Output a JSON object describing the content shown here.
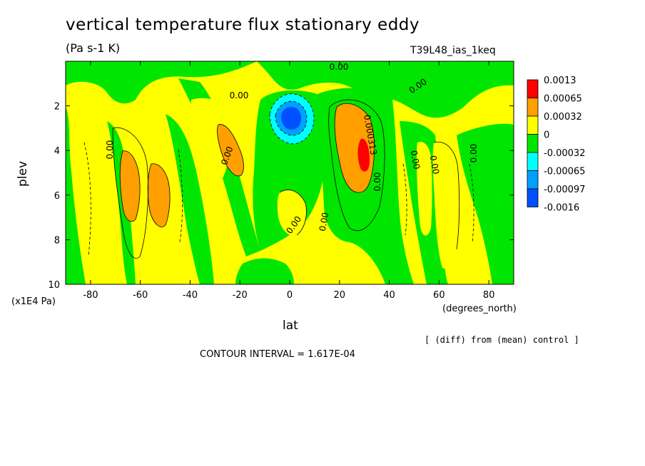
{
  "header": {
    "title": "vertical temperature flux stationary eddy",
    "units": "(Pa s-1 K)",
    "run": "T39L48_ias_1keq"
  },
  "footer": {
    "note": "[ (diff) from (mean) control ]",
    "interval": "CONTOUR INTERVAL = 1.617E-04"
  },
  "chart_data": {
    "type": "heatmap",
    "xlabel": "lat",
    "ylabel": "plev",
    "x_unit_label": "(degrees_north)",
    "y_unit_label": "(x1E4 Pa)",
    "xlim": [
      -90,
      90
    ],
    "ylim": [
      10,
      0
    ],
    "x_ticks": [
      -80,
      -60,
      -40,
      -20,
      0,
      20,
      40,
      60,
      80
    ],
    "y_ticks": [
      2,
      4,
      6,
      8,
      10
    ],
    "contour_labels": [
      "0.00",
      "0.00",
      "0.00",
      "0.00",
      "0.00",
      "0.00",
      "0.00",
      "0.00",
      "0.00",
      "0.00",
      "0.00",
      "0.000313"
    ],
    "colorbar": {
      "levels": [
        "0.0013",
        "0.00065",
        "0.00032",
        "0",
        "-0.00032",
        "-0.00065",
        "-0.00097",
        "-0.0016"
      ],
      "colors": [
        "#ff0000",
        "#ff9f00",
        "#ffff00",
        "#00e600",
        "#00ffff",
        "#00a0ff",
        "#0050ff"
      ]
    },
    "features": [
      {
        "label": "positive band",
        "lat_range": [
          -70,
          -45
        ],
        "plev_range": [
          4.5,
          7.5
        ],
        "level": "0.00032 to 0.00065"
      },
      {
        "label": "positive core",
        "lat_range": [
          20,
          35
        ],
        "plev_range": [
          2.5,
          5.5
        ],
        "level": "0.00065 to 0.0013"
      },
      {
        "label": "negative core",
        "lat_range": [
          -5,
          8
        ],
        "plev_range": [
          2,
          3.8
        ],
        "level": "-0.0016 to -0.00032"
      }
    ]
  }
}
